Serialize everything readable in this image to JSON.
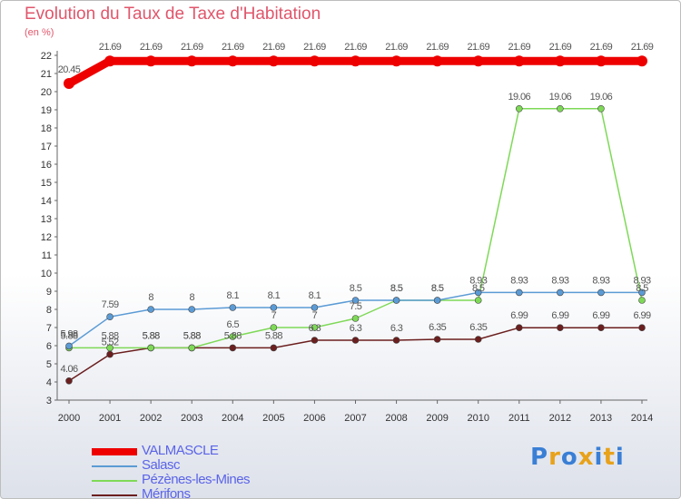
{
  "header": {
    "title": "Evolution du Taux de Taxe d'Habitation",
    "unit": "(en %)"
  },
  "chart_data": {
    "type": "line",
    "x": [
      "2000",
      "2001",
      "2002",
      "2003",
      "2004",
      "2005",
      "2006",
      "2007",
      "2008",
      "2009",
      "2010",
      "2011",
      "2012",
      "2013",
      "2014"
    ],
    "ylim": [
      3,
      22
    ],
    "yticks": [
      3,
      4,
      5,
      6,
      7,
      8,
      9,
      10,
      11,
      12,
      13,
      14,
      15,
      16,
      17,
      18,
      19,
      20,
      21,
      22
    ],
    "grid": false,
    "legend_position": "bottom-left",
    "series": [
      {
        "name": "VALMASCLE",
        "color": "#ee0000",
        "values": [
          20.45,
          21.69,
          21.69,
          21.69,
          21.69,
          21.69,
          21.69,
          21.69,
          21.69,
          21.69,
          21.69,
          21.69,
          21.69,
          21.69,
          21.69
        ],
        "labels": [
          "20.45",
          "21.69",
          "21.69",
          "21.69",
          "21.69",
          "21.69",
          "21.69",
          "21.69",
          "21.69",
          "21.69",
          "21.69",
          "21.69",
          "21.69",
          "21.69",
          "21.69"
        ]
      },
      {
        "name": "Salasc",
        "color": "#5b9bd5",
        "values": [
          5.98,
          7.59,
          8,
          8,
          8.1,
          8.1,
          8.1,
          8.5,
          8.5,
          8.5,
          8.93,
          8.93,
          8.93,
          8.93,
          8.93
        ],
        "labels": [
          "5.98",
          "7.59",
          "8",
          "8",
          "8.1",
          "8.1",
          "8.1",
          "8.5",
          "8.5",
          "8.5",
          "8.93",
          "8.93",
          "8.93",
          "8.93",
          "8.93"
        ]
      },
      {
        "name": "Pézènes-les-Mines",
        "color": "#7ed957",
        "values": [
          5.88,
          5.88,
          5.88,
          5.88,
          6.5,
          7,
          7,
          7.5,
          8.5,
          8.5,
          8.5,
          19.06,
          19.06,
          19.06,
          8.5
        ],
        "labels": [
          "5.88",
          "5.88",
          "5.88",
          "5.88",
          "6.5",
          "7",
          "7",
          "7.5",
          "8.5",
          "8.5",
          "8.5",
          "19.06",
          "19.06",
          "19.06",
          "8.5"
        ]
      },
      {
        "name": "Mérifons",
        "color": "#6b1e1e",
        "values": [
          4.06,
          5.52,
          5.88,
          5.88,
          5.88,
          5.88,
          6.3,
          6.3,
          6.3,
          6.35,
          6.35,
          6.99,
          6.99,
          6.99,
          6.99
        ],
        "labels": [
          "4.06",
          "5.52",
          "5.88",
          "5.88",
          "5.88",
          "5.88",
          "6.3",
          "6.3",
          "6.3",
          "6.35",
          "6.35",
          "6.99",
          "6.99",
          "6.99",
          "6.99"
        ]
      }
    ]
  },
  "legend": {
    "items": [
      {
        "label": "VALMASCLE",
        "color": "#ee0000"
      },
      {
        "label": "Salasc",
        "color": "#5b9bd5"
      },
      {
        "label": "Pézènes-les-Mines",
        "color": "#7ed957"
      },
      {
        "label": "Mérifons",
        "color": "#6b1e1e"
      }
    ]
  },
  "logo": {
    "letters": [
      "P",
      "r",
      "o",
      "x",
      "i",
      "t",
      "i"
    ],
    "colors": [
      "#3a7fd5",
      "#e8a21b",
      "#3a7fd5",
      "#e8a21b",
      "#3a7fd5",
      "#e8a21b",
      "#3a7fd5"
    ]
  }
}
